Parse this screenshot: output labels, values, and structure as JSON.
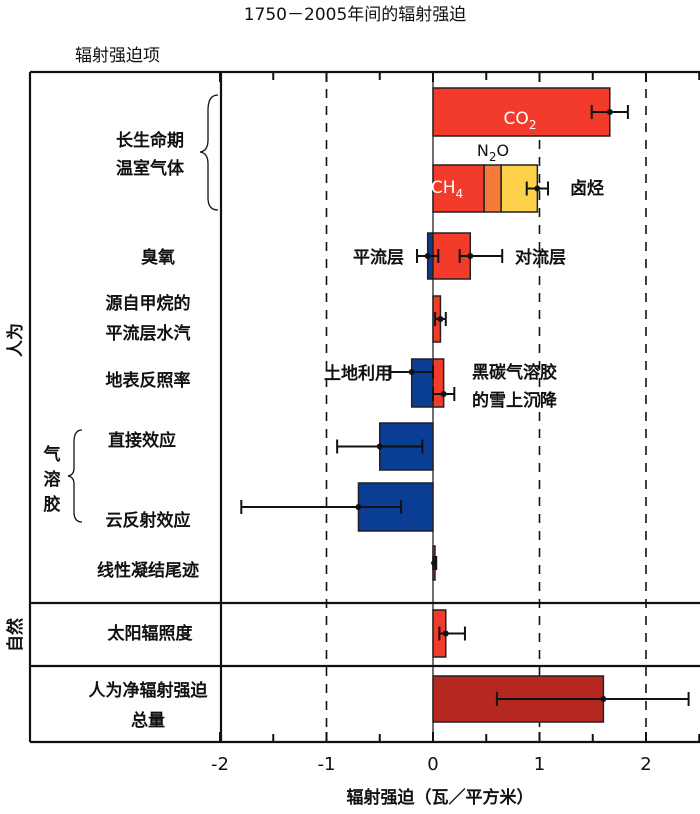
{
  "chart_data": {
    "type": "bar",
    "orientation": "horizontal",
    "title": "1750－2005年间的辐射强迫",
    "column_header": "辐射强迫项",
    "xlabel": "辐射强迫（瓦／平方米）",
    "xlim": [
      -2,
      2.5
    ],
    "xticks": [
      -2,
      -1,
      0,
      1,
      2
    ],
    "xtick_labels": [
      "-2",
      "-1",
      "0",
      "1",
      "2"
    ],
    "dashed_gridlines_at": [
      -1,
      1,
      2
    ],
    "groups": [
      {
        "label": "人为"
      },
      {
        "label": "自然"
      }
    ],
    "brace_labels": {
      "aerosol": "气溶胶"
    },
    "rows": [
      {
        "label": [
          "长生命期",
          "温室气体"
        ],
        "group": "人为",
        "bars": [
          {
            "name": "CO2",
            "start": 0,
            "end": 1.66,
            "color": "#f23b2b",
            "text": "CO",
            "sub": "2"
          }
        ],
        "errors": [
          {
            "value": 1.66,
            "low": 1.49,
            "high": 1.83
          }
        ]
      },
      {
        "label": [],
        "group": "人为",
        "bars": [
          {
            "name": "CH4",
            "start": 0,
            "end": 0.48,
            "color": "#f23b2b",
            "text": "CH",
            "sub": "4"
          },
          {
            "name": "N2O",
            "start": 0.48,
            "end": 0.64,
            "color": "#f47b3a",
            "text": "N",
            "sub": "2",
            "text2": "O"
          },
          {
            "name": "卤烃",
            "start": 0.64,
            "end": 0.98,
            "color": "#fdd24a",
            "text": "卤烃"
          }
        ],
        "errors": [
          {
            "value": 0.98,
            "low": 0.88,
            "high": 1.08
          }
        ]
      },
      {
        "label": [
          "臭氧"
        ],
        "group": "人为",
        "bars": [
          {
            "name": "平流层",
            "start": -0.05,
            "end": 0,
            "color": "#0a3d94",
            "text": "平流层"
          },
          {
            "name": "对流层",
            "start": 0,
            "end": 0.35,
            "color": "#f23b2b",
            "text": "对流层"
          }
        ],
        "errors": [
          {
            "value": -0.05,
            "low": -0.15,
            "high": 0.05
          },
          {
            "value": 0.35,
            "low": 0.25,
            "high": 0.65
          }
        ]
      },
      {
        "label": [
          "源自甲烷的",
          "平流层水汽"
        ],
        "group": "人为",
        "bars": [
          {
            "name": "stratospheric-water-vapour",
            "start": 0,
            "end": 0.07,
            "color": "#f23b2b"
          }
        ],
        "errors": [
          {
            "value": 0.07,
            "low": 0.02,
            "high": 0.12
          }
        ]
      },
      {
        "label": [
          "地表反照率"
        ],
        "group": "人为",
        "bars": [
          {
            "name": "土地利用",
            "start": -0.2,
            "end": 0,
            "color": "#0a3d94",
            "text": "土地利用"
          },
          {
            "name": "黑碳气溶胶的雪上沉降",
            "start": 0,
            "end": 0.1,
            "color": "#f23b2b",
            "text": "黑碳气溶胶",
            "text2": "的雪上沉降"
          }
        ],
        "errors": [
          {
            "value": -0.2,
            "low": -0.4,
            "high": 0.0
          },
          {
            "value": 0.1,
            "low": 0.0,
            "high": 0.2
          }
        ]
      },
      {
        "label": [
          "直接效应"
        ],
        "group": "人为",
        "bars": [
          {
            "name": "direct-aerosol",
            "start": -0.5,
            "end": 0,
            "color": "#0a3d94"
          }
        ],
        "errors": [
          {
            "value": -0.5,
            "low": -0.9,
            "high": -0.1
          }
        ]
      },
      {
        "label": [
          "云反射效应"
        ],
        "group": "人为",
        "bars": [
          {
            "name": "cloud-albedo",
            "start": -0.7,
            "end": 0,
            "color": "#0a3d94"
          }
        ],
        "errors": [
          {
            "value": -0.7,
            "low": -1.8,
            "high": -0.3
          }
        ]
      },
      {
        "label": [
          "线性凝结尾迹"
        ],
        "group": "人为",
        "bars": [
          {
            "name": "contrails",
            "start": 0,
            "end": 0.01,
            "color": "#f23b2b"
          }
        ],
        "errors": [
          {
            "value": 0.01,
            "low": 0.003,
            "high": 0.03
          }
        ]
      },
      {
        "label": [
          "太阳辐照度"
        ],
        "group": "自然",
        "bars": [
          {
            "name": "solar",
            "start": 0,
            "end": 0.12,
            "color": "#f23b2b"
          }
        ],
        "errors": [
          {
            "value": 0.12,
            "low": 0.06,
            "high": 0.3
          }
        ]
      },
      {
        "label": [
          "人为净辐射强迫",
          "总量"
        ],
        "group": "total",
        "bars": [
          {
            "name": "net-anthropogenic",
            "start": 0,
            "end": 1.6,
            "color": "#b5281f"
          }
        ],
        "errors": [
          {
            "value": 1.6,
            "low": 0.6,
            "high": 2.4
          }
        ]
      }
    ]
  }
}
